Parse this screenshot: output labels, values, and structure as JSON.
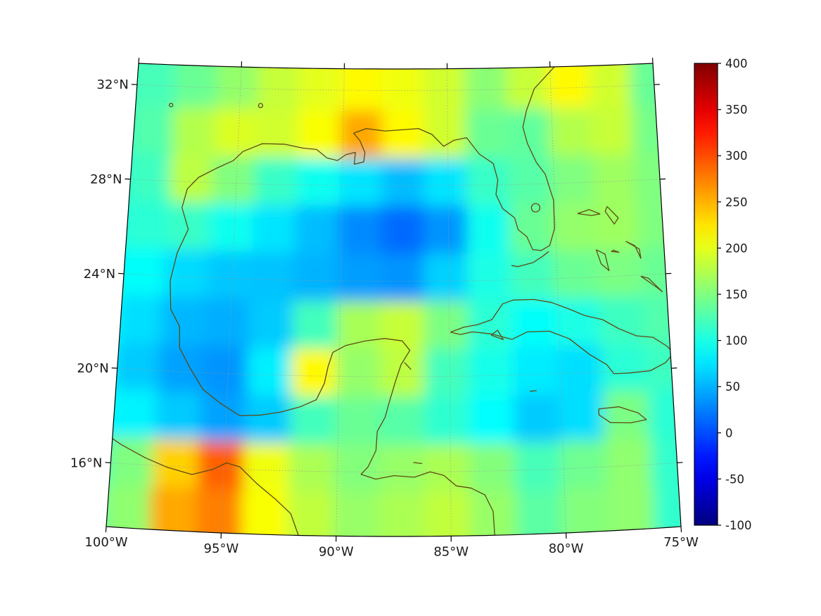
{
  "figure": {
    "background": "#ffffff",
    "frame_color": "#000000",
    "grid_color": "#9a9a9a",
    "coast_color": "#5d4a15",
    "label_color": "#1a1a1a"
  },
  "axes": {
    "x_tick_labels": [
      "100°W",
      "95°W",
      "90°W",
      "85°W",
      "80°W",
      "75°W"
    ],
    "y_tick_labels": [
      "32°N",
      "28°N",
      "24°N",
      "20°N",
      "16°N"
    ]
  },
  "colorbar": {
    "tick_labels": [
      "400",
      "350",
      "300",
      "250",
      "200",
      "150",
      "100",
      "50",
      "0",
      "-50",
      "-100"
    ],
    "vmin": -100,
    "vmax": 400,
    "colormap": "jet"
  },
  "chart_data": {
    "type": "heatmap",
    "title": "",
    "region": "Gulf of Mexico and northwest Caribbean",
    "projection": "conic",
    "colormap": "jet",
    "vmin": -100,
    "vmax": 400,
    "x_ticks_deg": [
      -100,
      -95,
      -90,
      -85,
      -80,
      -75
    ],
    "y_ticks_deg": [
      32,
      28,
      24,
      20,
      16
    ],
    "grid_lon": [
      -101,
      -99,
      -97,
      -95,
      -93,
      -91,
      -89,
      -87,
      -85,
      -83,
      -81,
      -79,
      -77,
      -75
    ],
    "grid_lat": [
      34,
      32,
      30,
      28,
      26,
      24,
      22,
      20,
      18,
      16,
      14,
      12
    ],
    "values": [
      [
        118,
        122,
        140,
        160,
        185,
        200,
        215,
        205,
        190,
        155,
        185,
        215,
        190,
        138
      ],
      [
        118,
        122,
        140,
        160,
        185,
        200,
        215,
        205,
        190,
        155,
        185,
        215,
        190,
        138
      ],
      [
        112,
        128,
        175,
        195,
        190,
        210,
        255,
        215,
        190,
        140,
        135,
        175,
        185,
        145
      ],
      [
        105,
        118,
        180,
        150,
        115,
        95,
        75,
        55,
        75,
        115,
        130,
        150,
        165,
        150
      ],
      [
        100,
        108,
        115,
        95,
        75,
        55,
        30,
        15,
        35,
        95,
        140,
        160,
        165,
        150
      ],
      [
        95,
        90,
        70,
        60,
        58,
        50,
        40,
        35,
        65,
        100,
        120,
        140,
        148,
        140
      ],
      [
        90,
        72,
        52,
        48,
        62,
        120,
        170,
        185,
        148,
        108,
        90,
        100,
        118,
        128
      ],
      [
        85,
        62,
        42,
        35,
        80,
        215,
        160,
        180,
        120,
        98,
        78,
        72,
        108,
        118
      ],
      [
        92,
        82,
        62,
        42,
        62,
        120,
        140,
        130,
        110,
        88,
        62,
        72,
        148,
        108
      ],
      [
        112,
        150,
        235,
        290,
        205,
        172,
        152,
        162,
        172,
        152,
        122,
        142,
        158,
        112
      ],
      [
        122,
        158,
        255,
        275,
        210,
        182,
        162,
        172,
        182,
        162,
        132,
        152,
        158,
        112
      ],
      [
        122,
        158,
        255,
        275,
        210,
        182,
        162,
        172,
        182,
        162,
        132,
        152,
        158,
        112
      ]
    ]
  }
}
